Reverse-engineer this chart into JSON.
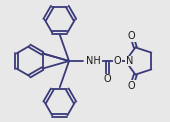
{
  "bg_color": "#e8e8e8",
  "bond_color": "#3a3a7a",
  "atom_color": "#1a1a1a",
  "lw": 1.3,
  "fs": 6.5,
  "fw": 1.7,
  "fh": 1.22,
  "dpi": 100,
  "xlim": [
    0,
    10
  ],
  "ylim": [
    0,
    7.18
  ]
}
